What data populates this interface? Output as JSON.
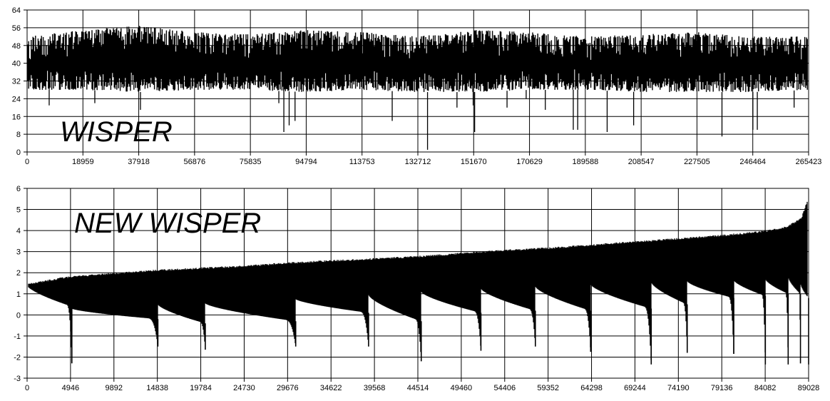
{
  "chart_data": [
    {
      "type": "area",
      "title": "WISPER",
      "xlabel": "",
      "ylabel": "",
      "xlim": [
        0,
        265423
      ],
      "ylim": [
        0,
        64
      ],
      "grid": true,
      "x_ticks": [
        "0",
        "18959",
        "37918",
        "56876",
        "75835",
        "94794",
        "113753",
        "132712",
        "151670",
        "170629",
        "189588",
        "208547",
        "227505",
        "246464",
        "265423"
      ],
      "y_ticks": [
        "0",
        "8",
        "16",
        "24",
        "32",
        "40",
        "48",
        "56",
        "64"
      ],
      "envelope": {
        "x": [
          0,
          18959,
          37918,
          56876,
          75835,
          94794,
          113753,
          132712,
          151670,
          170629,
          189588,
          208547,
          227505,
          246464,
          265423
        ],
        "upper": [
          52,
          55,
          57,
          54,
          53,
          55,
          54,
          52,
          55,
          54,
          52,
          53,
          54,
          52,
          52
        ],
        "lower": [
          28,
          28,
          27,
          28,
          28,
          27,
          28,
          27,
          27,
          28,
          28,
          27,
          27,
          27,
          28
        ]
      },
      "min_spikes": [
        {
          "x": 7500,
          "y": 21
        },
        {
          "x": 23000,
          "y": 22
        },
        {
          "x": 38500,
          "y": 19
        },
        {
          "x": 85500,
          "y": 22
        },
        {
          "x": 87200,
          "y": 9
        },
        {
          "x": 89000,
          "y": 12
        },
        {
          "x": 91000,
          "y": 14
        },
        {
          "x": 124000,
          "y": 14
        },
        {
          "x": 136000,
          "y": 1
        },
        {
          "x": 146000,
          "y": 20
        },
        {
          "x": 151500,
          "y": 21
        },
        {
          "x": 152000,
          "y": 9
        },
        {
          "x": 163000,
          "y": 20
        },
        {
          "x": 169500,
          "y": 24
        },
        {
          "x": 176000,
          "y": 19
        },
        {
          "x": 185500,
          "y": 10
        },
        {
          "x": 187000,
          "y": 10
        },
        {
          "x": 197000,
          "y": 9
        },
        {
          "x": 206000,
          "y": 12
        },
        {
          "x": 236000,
          "y": 7
        },
        {
          "x": 246500,
          "y": 10
        },
        {
          "x": 248000,
          "y": 10
        },
        {
          "x": 260500,
          "y": 20
        }
      ]
    },
    {
      "type": "area",
      "title": "NEW WISPER",
      "xlabel": "",
      "ylabel": "",
      "xlim": [
        0,
        89028
      ],
      "ylim": [
        -3,
        6
      ],
      "grid": true,
      "x_ticks": [
        "0",
        "4946",
        "9892",
        "14838",
        "19784",
        "24730",
        "29676",
        "34622",
        "39568",
        "44514",
        "49460",
        "54406",
        "59352",
        "64298",
        "69244",
        "74190",
        "79136",
        "84082",
        "89028"
      ],
      "y_ticks": [
        "-3",
        "-2",
        "-1",
        "0",
        "1",
        "2",
        "3",
        "4",
        "5",
        "6"
      ],
      "upper": {
        "x": [
          0,
          4946,
          9892,
          14838,
          19784,
          24730,
          29676,
          34622,
          39568,
          44514,
          49460,
          54406,
          59352,
          64298,
          69244,
          74190,
          79136,
          84082,
          86500,
          88200,
          89028
        ],
        "y": [
          1.5,
          1.85,
          2.0,
          2.15,
          2.25,
          2.35,
          2.5,
          2.6,
          2.7,
          2.8,
          2.95,
          3.1,
          3.2,
          3.35,
          3.5,
          3.65,
          3.8,
          4.0,
          4.2,
          4.6,
          5.6
        ]
      },
      "cycles": [
        {
          "x0": 0,
          "x1": 5100,
          "base": 1.4,
          "end": 0.4,
          "min": -2.3
        },
        {
          "x0": 5100,
          "x1": 14900,
          "base": 0.3,
          "end": -0.2,
          "min": -1.5
        },
        {
          "x0": 14900,
          "x1": 20300,
          "base": 0.5,
          "end": -0.4,
          "min": -1.65
        },
        {
          "x0": 20300,
          "x1": 30600,
          "base": 0.55,
          "end": -0.3,
          "min": -1.5
        },
        {
          "x0": 30600,
          "x1": 38900,
          "base": 0.75,
          "end": 0.1,
          "min": -1.5
        },
        {
          "x0": 38900,
          "x1": 44900,
          "base": 0.95,
          "end": -0.3,
          "min": -2.2
        },
        {
          "x0": 44900,
          "x1": 51700,
          "base": 1.1,
          "end": 0.1,
          "min": -1.7
        },
        {
          "x0": 51700,
          "x1": 57900,
          "base": 1.25,
          "end": 0.2,
          "min": -1.5
        },
        {
          "x0": 57900,
          "x1": 64200,
          "base": 1.35,
          "end": 0.2,
          "min": -1.75
        },
        {
          "x0": 64200,
          "x1": 71100,
          "base": 1.45,
          "end": 0.3,
          "min": -2.35
        },
        {
          "x0": 71100,
          "x1": 75200,
          "base": 1.55,
          "end": 0.5,
          "min": -1.8
        },
        {
          "x0": 75200,
          "x1": 80500,
          "base": 1.6,
          "end": 0.8,
          "min": -1.85
        },
        {
          "x0": 80500,
          "x1": 84100,
          "base": 1.65,
          "end": 0.9,
          "min": -2.35
        },
        {
          "x0": 84100,
          "x1": 86700,
          "base": 1.7,
          "end": 1.0,
          "min": -2.35
        },
        {
          "x0": 86700,
          "x1": 88100,
          "base": 1.8,
          "end": 1.0,
          "min": -2.3
        },
        {
          "x0": 88100,
          "x1": 89028,
          "base": 1.5,
          "end": 0.8,
          "min": -2.35
        }
      ]
    }
  ]
}
